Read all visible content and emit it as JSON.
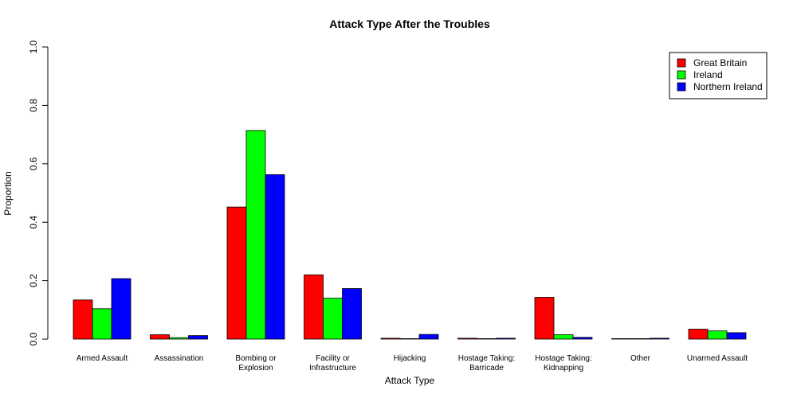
{
  "chart_data": {
    "type": "bar",
    "title": "Attack Type After the Troubles",
    "xlabel": "Attack Type",
    "ylabel": "Proportion",
    "ylim": [
      0,
      1
    ],
    "yticks": [
      "0.0",
      "0.2",
      "0.4",
      "0.6",
      "0.8",
      "1.0"
    ],
    "grid": false,
    "legend_position": "top-right",
    "categories": [
      [
        "Armed Assault"
      ],
      [
        "Assassination"
      ],
      [
        "Bombing or",
        "Explosion"
      ],
      [
        "Facility or",
        "Infrastructure"
      ],
      [
        "Hijacking"
      ],
      [
        "Hostage Taking:",
        "Barricade"
      ],
      [
        "Hostage Taking:",
        "Kidnapping"
      ],
      [
        "Other"
      ],
      [
        "Unarmed Assault"
      ]
    ],
    "series": [
      {
        "name": "Great Britain",
        "color": "#ff0000",
        "values": [
          0.134,
          0.015,
          0.452,
          0.22,
          0.003,
          0.003,
          0.143,
          0.001,
          0.034
        ]
      },
      {
        "name": "Ireland",
        "color": "#00ff00",
        "values": [
          0.104,
          0.005,
          0.714,
          0.14,
          0.001,
          0.001,
          0.015,
          0.001,
          0.028
        ]
      },
      {
        "name": "Northern Ireland",
        "color": "#0000ff",
        "values": [
          0.207,
          0.012,
          0.563,
          0.173,
          0.016,
          0.003,
          0.006,
          0.003,
          0.022
        ]
      }
    ]
  }
}
